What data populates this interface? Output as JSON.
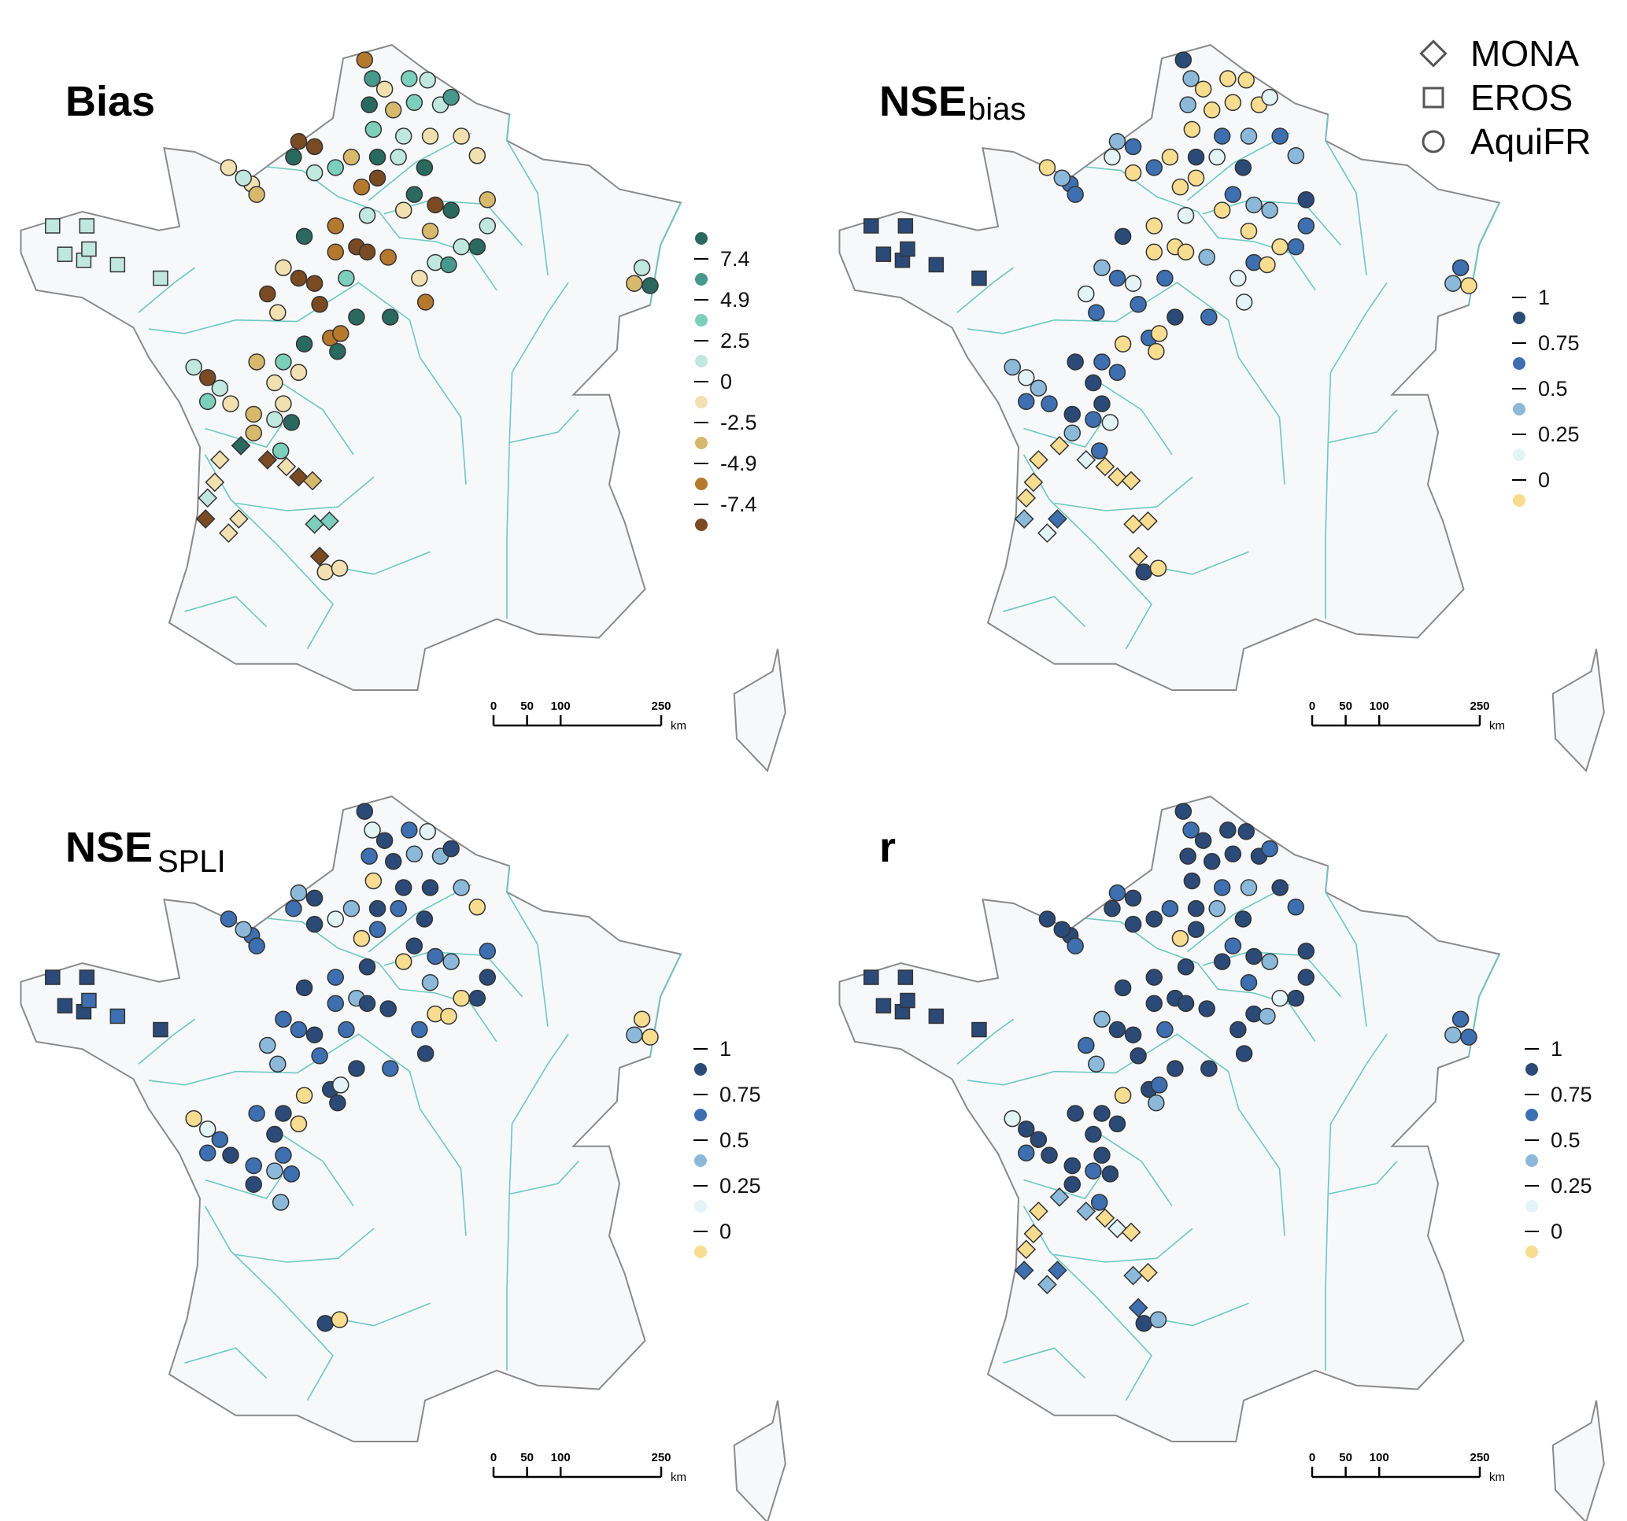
{
  "panels": [
    {
      "id": "bias",
      "title": "Bias",
      "subscript": "",
      "metric": "bias",
      "legend": "bias"
    },
    {
      "id": "nse_bias",
      "title": "NSE",
      "subscript": "bias",
      "metric": "nse_bias",
      "legend": "nse"
    },
    {
      "id": "nse_spli",
      "title": "NSE",
      "subscript": "SPLI",
      "metric": "nse_spli",
      "legend": "nse"
    },
    {
      "id": "r",
      "title": "r",
      "subscript": "",
      "metric": "r",
      "legend": "nse"
    }
  ],
  "network_legend": [
    {
      "label": "MONA",
      "shape": "diamond"
    },
    {
      "label": "EROS",
      "shape": "square"
    },
    {
      "label": "AquiFR",
      "shape": "circle"
    }
  ],
  "legends": {
    "bias": {
      "ticks": [
        "7.4",
        "4.9",
        "2.5",
        "0",
        "-2.5",
        "-4.9",
        "-7.4"
      ],
      "breaks": [
        7.4,
        4.9,
        2.5,
        0,
        -2.5,
        -4.9,
        -7.4
      ],
      "colors": [
        "#2a6a5e",
        "#47998b",
        "#7ccfbb",
        "#c1e8de",
        "#f2e0b0",
        "#d7b96d",
        "#b5792e",
        "#7a4a23"
      ]
    },
    "nse": {
      "ticks": [
        "1",
        "0.75",
        "0.5",
        "0.25",
        "0"
      ],
      "breaks": [
        0.75,
        0.5,
        0.25,
        0
      ],
      "colors": [
        "#2b4a78",
        "#3d6fb1",
        "#8cb9d9",
        "#e3f3f6",
        "#f8dc8f"
      ]
    }
  },
  "scale_bar": {
    "ticks": [
      "0",
      "50",
      "100",
      "250"
    ],
    "values_km": [
      0,
      50,
      100,
      250
    ],
    "unit": "km"
  },
  "colors": {
    "land": "#f7f8fa",
    "coast": "#8a8a8a",
    "rivers": "#6cc9c1",
    "marker_stroke": "#333333"
  },
  "stations": {
    "fields": [
      "lon",
      "lat",
      "network",
      "bias",
      "nse_bias",
      "nse_spli",
      "r"
    ],
    "rows": [
      [
        2.02,
        50.88,
        "AquiFR",
        -6,
        0.85,
        0.85,
        0.85
      ],
      [
        2.17,
        50.63,
        "AquiFR",
        6,
        0.4,
        0.1,
        0.6
      ],
      [
        2.41,
        50.49,
        "AquiFR",
        -1,
        -0.5,
        0.85,
        0.85
      ],
      [
        2.89,
        50.63,
        "AquiFR",
        3.5,
        -0.5,
        0.6,
        0.85
      ],
      [
        3.25,
        50.61,
        "AquiFR",
        1,
        -0.5,
        0.1,
        0.85
      ],
      [
        3.5,
        50.28,
        "AquiFR",
        1,
        -0.5,
        0.4,
        0.85
      ],
      [
        3.71,
        50.38,
        "AquiFR",
        6,
        0.1,
        0.85,
        0.6
      ],
      [
        2.11,
        50.28,
        "AquiFR",
        9,
        0.4,
        0.6,
        0.85
      ],
      [
        2.58,
        50.21,
        "AquiFR",
        -3.5,
        -0.5,
        0.85,
        0.85
      ],
      [
        2.99,
        50.31,
        "AquiFR",
        3.5,
        -0.5,
        0.4,
        0.85
      ],
      [
        3.3,
        49.86,
        "AquiFR",
        -1,
        0.4,
        0.85,
        0.4
      ],
      [
        2.78,
        49.86,
        "AquiFR",
        1,
        0.6,
        0.85,
        0.6
      ],
      [
        2.19,
        49.95,
        "AquiFR",
        3.5,
        -0.5,
        -0.5,
        0.85
      ],
      [
        3.91,
        49.86,
        "AquiFR",
        -1,
        0.6,
        0.4,
        0.85
      ],
      [
        4.22,
        49.6,
        "AquiFR",
        -1,
        0.4,
        -0.5,
        0.6
      ],
      [
        3.19,
        49.44,
        "AquiFR",
        9,
        0.85,
        0.85,
        0.85
      ],
      [
        2.68,
        49.58,
        "AquiFR",
        1,
        0.1,
        0.6,
        0.4
      ],
      [
        2.27,
        49.58,
        "AquiFR",
        9,
        0.85,
        0.85,
        0.85
      ],
      [
        1.76,
        49.58,
        "AquiFR",
        -3.5,
        -0.5,
        0.4,
        0.6
      ],
      [
        1.04,
        49.72,
        "AquiFR",
        -9,
        0.6,
        0.85,
        0.85
      ],
      [
        0.73,
        49.79,
        "AquiFR",
        -9,
        0.4,
        0.4,
        0.6
      ],
      [
        0.63,
        49.58,
        "AquiFR",
        9,
        0.1,
        0.6,
        0.85
      ],
      [
        1.04,
        49.37,
        "AquiFR",
        1,
        -0.5,
        0.85,
        0.85
      ],
      [
        1.45,
        49.44,
        "AquiFR",
        3.5,
        0.6,
        0.1,
        0.85
      ],
      [
        1.96,
        49.18,
        "AquiFR",
        -6,
        -0.5,
        -0.5,
        -0.5
      ],
      [
        2.27,
        49.3,
        "AquiFR",
        -9,
        -0.5,
        0.6,
        0.85
      ],
      [
        2.99,
        49.08,
        "AquiFR",
        9,
        0.6,
        0.85,
        0.6
      ],
      [
        3.4,
        48.94,
        "AquiFR",
        -9,
        0.4,
        0.6,
        0.85
      ],
      [
        3.71,
        48.87,
        "AquiFR",
        9,
        0.4,
        0.4,
        0.4
      ],
      [
        4.42,
        49.01,
        "AquiFR",
        -3.5,
        0.85,
        0.6,
        0.85
      ],
      [
        4.42,
        48.66,
        "AquiFR",
        1,
        0.6,
        0.85,
        0.85
      ],
      [
        4.22,
        48.38,
        "AquiFR",
        9,
        0.6,
        0.85,
        0.85
      ],
      [
        3.91,
        48.38,
        "AquiFR",
        1,
        -0.5,
        -0.5,
        0.1
      ],
      [
        3.3,
        48.59,
        "AquiFR",
        -3.5,
        -0.5,
        0.4,
        0.6
      ],
      [
        2.78,
        48.87,
        "AquiFR",
        -1,
        -0.5,
        -0.5,
        0.85
      ],
      [
        2.07,
        48.8,
        "AquiFR",
        1,
        0.1,
        0.85,
        0.85
      ],
      [
        1.45,
        48.66,
        "AquiFR",
        -6,
        -0.5,
        0.6,
        0.85
      ],
      [
        0.84,
        48.52,
        "AquiFR",
        9,
        0.85,
        0.85,
        0.85
      ],
      [
        1.45,
        48.31,
        "AquiFR",
        -6,
        -0.5,
        0.6,
        0.85
      ],
      [
        1.86,
        48.38,
        "AquiFR",
        -9,
        -0.5,
        0.4,
        0.85
      ],
      [
        2.07,
        48.31,
        "AquiFR",
        -9,
        -0.5,
        0.85,
        0.85
      ],
      [
        2.48,
        48.24,
        "AquiFR",
        -6,
        0.4,
        0.85,
        0.85
      ],
      [
        1.66,
        47.96,
        "AquiFR",
        3.5,
        0.6,
        0.6,
        0.6
      ],
      [
        1.04,
        47.89,
        "AquiFR",
        -9,
        0.1,
        0.85,
        0.85
      ],
      [
        0.73,
        47.96,
        "AquiFR",
        -9,
        0.6,
        0.6,
        0.85
      ],
      [
        0.43,
        48.1,
        "AquiFR",
        -1,
        0.4,
        0.6,
        0.4
      ],
      [
        0.12,
        47.75,
        "AquiFR",
        -9,
        0.1,
        0.4,
        0.6
      ],
      [
        0.32,
        47.5,
        "AquiFR",
        -1,
        0.6,
        0.4,
        0.4
      ],
      [
        1.14,
        47.61,
        "AquiFR",
        -9,
        0.6,
        0.6,
        0.85
      ],
      [
        1.86,
        47.44,
        "AquiFR",
        9,
        0.85,
        0.85,
        0.85
      ],
      [
        2.52,
        47.44,
        "AquiFR",
        9,
        0.6,
        0.6,
        0.85
      ],
      [
        3.21,
        47.64,
        "AquiFR",
        -6,
        0.1,
        0.85,
        0.85
      ],
      [
        1.35,
        47.16,
        "AquiFR",
        -6,
        0.6,
        0.85,
        0.85
      ],
      [
        1.55,
        47.22,
        "AquiFR",
        -6,
        -0.5,
        0.1,
        0.6
      ],
      [
        0.84,
        47.08,
        "AquiFR",
        9,
        -0.5,
        -0.5,
        -0.5
      ],
      [
        1.49,
        46.98,
        "AquiFR",
        9,
        -0.5,
        0.85,
        0.4
      ],
      [
        -0.64,
        49.44,
        "AquiFR",
        -1,
        -0.5,
        0.6,
        0.85
      ],
      [
        -0.19,
        49.22,
        "AquiFR",
        -1,
        0.6,
        0.6,
        0.85
      ],
      [
        -0.09,
        49.08,
        "AquiFR",
        -3.5,
        0.6,
        0.6,
        0.6
      ],
      [
        -0.35,
        49.3,
        "AquiFR",
        1,
        0.4,
        0.4,
        0.85
      ],
      [
        3.09,
        47.96,
        "AquiFR",
        -1,
        0.1,
        0.6,
        0.85
      ],
      [
        3.4,
        48.17,
        "AquiFR",
        1,
        0.6,
        -0.5,
        0.85
      ],
      [
        3.66,
        48.14,
        "AquiFR",
        6,
        -0.5,
        -0.5,
        0.4
      ],
      [
        -1.32,
        46.77,
        "AquiFR",
        1,
        0.4,
        -0.5,
        0.1
      ],
      [
        -1.05,
        46.63,
        "AquiFR",
        -9,
        0.1,
        0.1,
        0.85
      ],
      [
        -0.81,
        46.49,
        "AquiFR",
        1,
        0.4,
        0.6,
        0.85
      ],
      [
        -1.05,
        46.31,
        "AquiFR",
        3.5,
        0.6,
        0.6,
        0.6
      ],
      [
        -0.6,
        46.28,
        "AquiFR",
        -1,
        0.6,
        0.85,
        0.85
      ],
      [
        -0.09,
        46.84,
        "AquiFR",
        -3.5,
        0.85,
        0.6,
        0.85
      ],
      [
        0.43,
        46.84,
        "AquiFR",
        3.5,
        0.6,
        0.85,
        0.85
      ],
      [
        0.73,
        46.7,
        "AquiFR",
        -1,
        0.6,
        -0.5,
        0.85
      ],
      [
        0.26,
        46.56,
        "AquiFR",
        -1,
        0.85,
        0.85,
        0.85
      ],
      [
        0.43,
        46.28,
        "AquiFR",
        -1,
        0.85,
        0.6,
        0.85
      ],
      [
        -0.15,
        46.14,
        "AquiFR",
        -3.5,
        0.85,
        0.6,
        0.85
      ],
      [
        -0.15,
        45.89,
        "AquiFR",
        -3.5,
        0.4,
        0.85,
        0.85
      ],
      [
        0.26,
        46.07,
        "AquiFR",
        1,
        0.6,
        0.4,
        0.6
      ],
      [
        0.59,
        46.03,
        "AquiFR",
        9,
        0.1,
        0.6,
        0.85
      ],
      [
        0.38,
        45.65,
        "AquiFR",
        3.5,
        0.6,
        0.4,
        0.6
      ],
      [
        7.44,
        48.1,
        "AquiFR",
        1,
        0.6,
        -0.5,
        0.6
      ],
      [
        7.29,
        47.89,
        "AquiFR",
        -3.5,
        0.4,
        0.4,
        0.4
      ],
      [
        7.6,
        47.86,
        "AquiFR",
        9,
        -0.5,
        -0.5,
        0.6
      ],
      [
        -0.81,
        45.53,
        "MONA",
        -1,
        -0.5,
        null,
        -0.5
      ],
      [
        -0.4,
        45.72,
        "MONA",
        9,
        -0.5,
        null,
        0.4
      ],
      [
        0.12,
        45.53,
        "MONA",
        -9,
        0.1,
        null,
        0.4
      ],
      [
        0.49,
        45.44,
        "MONA",
        -1,
        -0.5,
        null,
        -0.5
      ],
      [
        0.73,
        45.3,
        "MONA",
        -9,
        -0.5,
        null,
        0.1
      ],
      [
        1.0,
        45.25,
        "MONA",
        -3.5,
        -0.5,
        null,
        -0.5
      ],
      [
        -0.91,
        45.23,
        "MONA",
        -1,
        -0.5,
        null,
        -0.5
      ],
      [
        -1.05,
        45.02,
        "MONA",
        1,
        -0.5,
        null,
        -0.5
      ],
      [
        -1.09,
        44.74,
        "MONA",
        -9,
        0.4,
        null,
        0.6
      ],
      [
        -0.64,
        44.55,
        "MONA",
        -1,
        0.1,
        null,
        0.4
      ],
      [
        -0.44,
        44.74,
        "MONA",
        -1,
        0.6,
        null,
        0.6
      ],
      [
        1.04,
        44.67,
        "MONA",
        3.5,
        -0.5,
        null,
        0.4
      ],
      [
        1.33,
        44.71,
        "MONA",
        3.5,
        -0.5,
        null,
        -0.5
      ],
      [
        1.14,
        44.24,
        "MONA",
        -9,
        -0.5,
        null,
        0.6
      ],
      [
        1.25,
        44.03,
        "AquiFR",
        -1,
        0.85,
        0.85,
        0.85
      ],
      [
        1.53,
        44.08,
        "AquiFR",
        -1,
        -0.5,
        -0.5,
        0.4
      ],
      [
        -4.08,
        48.66,
        "EROS",
        1,
        0.85,
        0.85,
        0.85
      ],
      [
        -3.41,
        48.66,
        "EROS",
        1,
        0.85,
        0.85,
        0.85
      ],
      [
        -3.84,
        48.28,
        "EROS",
        1,
        0.85,
        0.85,
        0.85
      ],
      [
        -3.47,
        48.2,
        "EROS",
        1,
        0.85,
        0.85,
        0.85
      ],
      [
        -3.37,
        48.35,
        "EROS",
        1,
        0.85,
        0.6,
        0.85
      ],
      [
        -2.81,
        48.14,
        "EROS",
        1,
        0.85,
        0.6,
        0.85
      ],
      [
        -1.97,
        47.96,
        "EROS",
        1,
        0.85,
        0.85,
        0.85
      ]
    ]
  }
}
